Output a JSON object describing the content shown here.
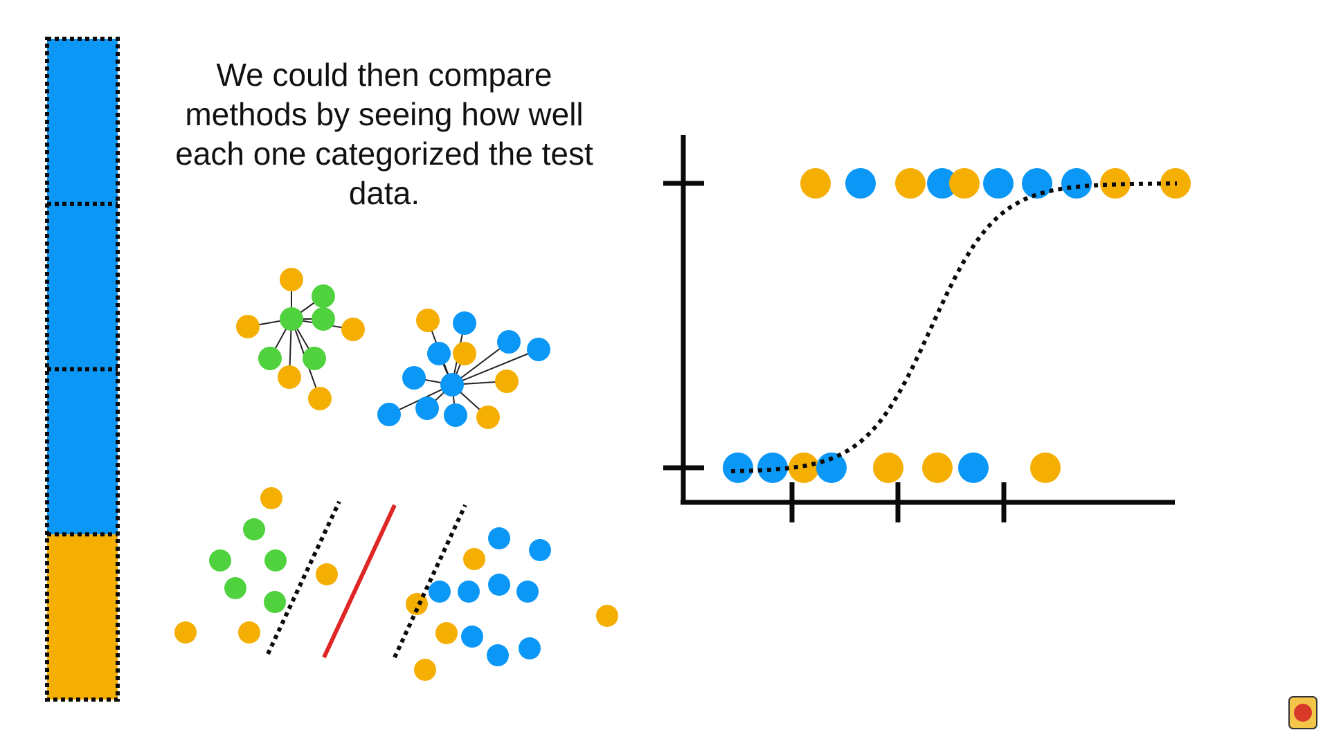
{
  "caption": "We could then compare methods by seeing how well each one categorized the test data.",
  "colors": {
    "background": "#ffffff",
    "blue": "#0a97f6",
    "orange": "#f5ae02",
    "green": "#4fd23e",
    "red": "#e02525",
    "ink": "#0a0a0a"
  },
  "fold_bar": {
    "segments": [
      "blue",
      "blue",
      "blue",
      "orange"
    ]
  },
  "knn_clusters": [
    {
      "center": "green",
      "neighbors": [
        "orange",
        "green",
        "green",
        "orange",
        "orange",
        "green",
        "green",
        "orange",
        "orange"
      ]
    },
    {
      "center": "blue",
      "neighbors": [
        "orange",
        "blue",
        "blue",
        "blue",
        "blue",
        "orange",
        "blue",
        "orange",
        "blue",
        "blue",
        "orange",
        "blue"
      ]
    }
  ],
  "svm_scatter": {
    "groups": [
      "green",
      "orange",
      "blue"
    ]
  },
  "logistic_plot": {
    "y_ticks": 2,
    "x_ticks": 3,
    "top_row": [
      "orange",
      "blue",
      "orange",
      "blue",
      "orange",
      "blue",
      "blue",
      "blue",
      "orange",
      "orange"
    ],
    "bottom_row": [
      "blue",
      "blue",
      "orange",
      "blue",
      "orange",
      "orange",
      "blue",
      "orange"
    ],
    "curve": "dotted sigmoid"
  },
  "watermark": "StatQuest logo"
}
